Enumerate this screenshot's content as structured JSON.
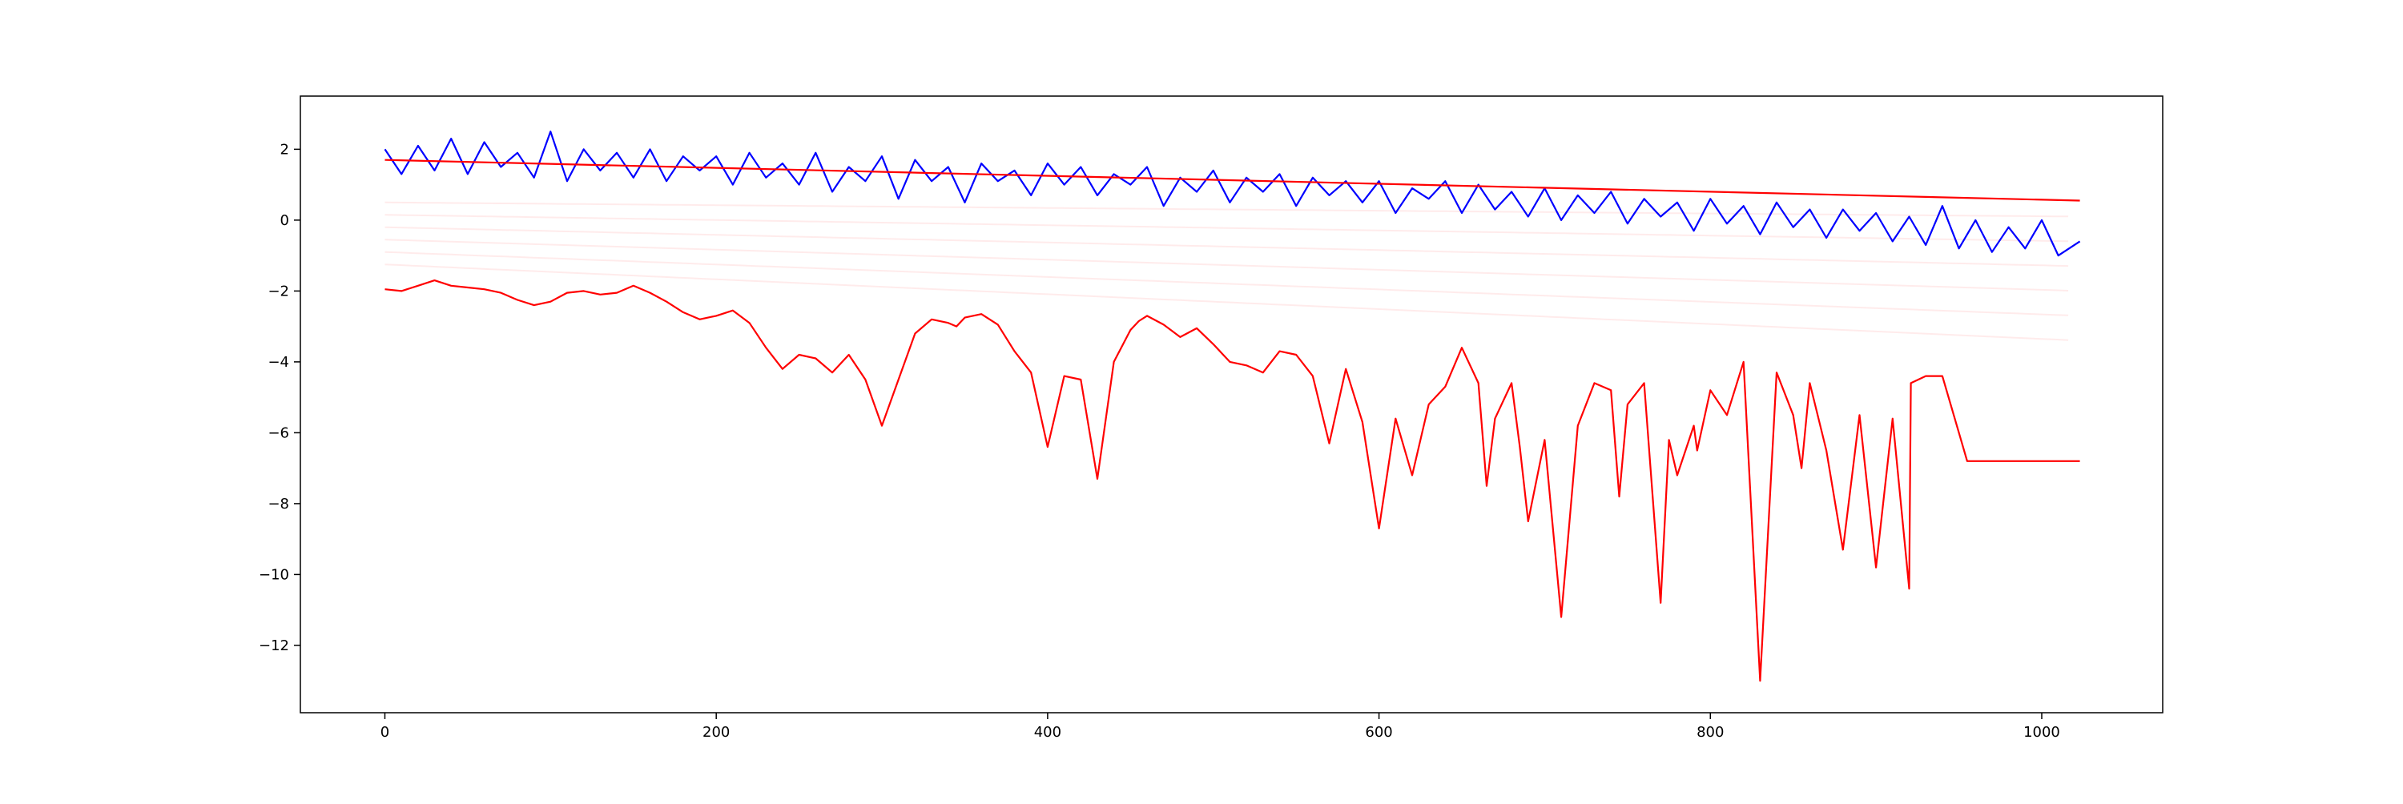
{
  "chart_data": {
    "type": "line",
    "title": "",
    "xlabel": "",
    "ylabel": "",
    "xlim": [
      -51,
      1073
    ],
    "ylim": [
      -13.9,
      3.5
    ],
    "x_ticks": [
      0,
      200,
      400,
      600,
      800,
      1000
    ],
    "x_tick_labels": [
      "0",
      "200",
      "400",
      "600",
      "800",
      "1000"
    ],
    "y_ticks": [
      2,
      0,
      -2,
      -4,
      -6,
      -8,
      -10,
      -12
    ],
    "y_tick_labels": [
      "2",
      "0",
      "−2",
      "−4",
      "−6",
      "−8",
      "−10",
      "−12"
    ],
    "grid": false,
    "legend": null,
    "series": [
      {
        "color": "#0000ff",
        "style": "noisy signal",
        "x": [
          0,
          10,
          20,
          30,
          40,
          50,
          60,
          70,
          80,
          90,
          100,
          110,
          120,
          130,
          140,
          150,
          160,
          170,
          180,
          190,
          200,
          210,
          220,
          230,
          240,
          250,
          260,
          270,
          280,
          290,
          300,
          310,
          320,
          330,
          340,
          350,
          360,
          370,
          380,
          390,
          400,
          410,
          420,
          430,
          440,
          450,
          460,
          470,
          480,
          490,
          500,
          510,
          520,
          530,
          540,
          550,
          560,
          570,
          580,
          590,
          600,
          610,
          620,
          630,
          640,
          650,
          660,
          670,
          680,
          690,
          700,
          710,
          720,
          730,
          740,
          750,
          760,
          770,
          780,
          790,
          800,
          810,
          820,
          830,
          840,
          850,
          860,
          870,
          880,
          890,
          900,
          910,
          920,
          930,
          940,
          950,
          960,
          970,
          980,
          990,
          1000,
          1010,
          1023
        ],
        "y": [
          2.0,
          1.3,
          2.1,
          1.4,
          2.3,
          1.3,
          2.2,
          1.5,
          1.9,
          1.2,
          2.5,
          1.1,
          2.0,
          1.4,
          1.9,
          1.2,
          2.0,
          1.1,
          1.8,
          1.4,
          1.8,
          1.0,
          1.9,
          1.2,
          1.6,
          1.0,
          1.9,
          0.8,
          1.5,
          1.1,
          1.8,
          0.6,
          1.7,
          1.1,
          1.5,
          0.5,
          1.6,
          1.1,
          1.4,
          0.7,
          1.6,
          1.0,
          1.5,
          0.7,
          1.3,
          1.0,
          1.5,
          0.4,
          1.2,
          0.8,
          1.4,
          0.5,
          1.2,
          0.8,
          1.3,
          0.4,
          1.2,
          0.7,
          1.1,
          0.5,
          1.1,
          0.2,
          0.9,
          0.6,
          1.1,
          0.2,
          1.0,
          0.3,
          0.8,
          0.1,
          0.9,
          0.0,
          0.7,
          0.2,
          0.8,
          -0.1,
          0.6,
          0.1,
          0.5,
          -0.3,
          0.6,
          -0.1,
          0.4,
          -0.4,
          0.5,
          -0.2,
          0.3,
          -0.5,
          0.3,
          -0.3,
          0.2,
          -0.6,
          0.1,
          -0.7,
          0.4,
          -0.8,
          0.0,
          -0.9,
          -0.2,
          -0.8,
          0.0,
          -1.0,
          -0.6
        ]
      },
      {
        "color": "#ff0000",
        "style": "straight trend line",
        "x": [
          0,
          1023
        ],
        "y": [
          1.7,
          0.55
        ]
      },
      {
        "color": "#ff0000",
        "style": "log-magnitude curve",
        "x": [
          0,
          10,
          20,
          30,
          40,
          50,
          60,
          70,
          80,
          90,
          100,
          110,
          120,
          130,
          140,
          150,
          160,
          170,
          180,
          190,
          200,
          210,
          220,
          230,
          240,
          250,
          260,
          270,
          280,
          290,
          300,
          310,
          320,
          330,
          340,
          345,
          350,
          360,
          370,
          380,
          390,
          400,
          410,
          420,
          430,
          440,
          450,
          455,
          460,
          470,
          480,
          490,
          500,
          510,
          520,
          530,
          540,
          550,
          560,
          570,
          580,
          590,
          600,
          610,
          620,
          630,
          640,
          650,
          660,
          665,
          670,
          680,
          685,
          690,
          700,
          710,
          720,
          730,
          740,
          745,
          750,
          760,
          770,
          775,
          780,
          790,
          792,
          800,
          810,
          820,
          830,
          840,
          850,
          855,
          860,
          870,
          880,
          890,
          900,
          910,
          920,
          921,
          930,
          940,
          950,
          955,
          960,
          970,
          980,
          985,
          990,
          1000,
          1010,
          1023
        ],
        "y": [
          -1.95,
          -2.0,
          -1.85,
          -1.7,
          -1.85,
          -1.9,
          -1.95,
          -2.05,
          -2.25,
          -2.4,
          -2.3,
          -2.05,
          -2.0,
          -2.1,
          -2.05,
          -1.85,
          -2.05,
          -2.3,
          -2.6,
          -2.8,
          -2.7,
          -2.55,
          -2.9,
          -3.6,
          -4.2,
          -3.8,
          -3.9,
          -4.3,
          -3.8,
          -4.5,
          -5.8,
          -4.5,
          -3.2,
          -2.8,
          -2.9,
          -3.0,
          -2.75,
          -2.65,
          -2.95,
          -3.7,
          -4.3,
          -6.4,
          -4.4,
          -4.5,
          -7.3,
          -4.0,
          -3.1,
          -2.85,
          -2.7,
          -2.95,
          -3.3,
          -3.05,
          -3.5,
          -4.0,
          -4.1,
          -4.3,
          -3.7,
          -3.8,
          -4.4,
          -6.3,
          -4.2,
          -5.7,
          -8.7,
          -5.6,
          -7.2,
          -5.2,
          -4.7,
          -3.6,
          -4.6,
          -7.5,
          -5.6,
          -4.6,
          -6.4,
          -8.5,
          -6.2,
          -11.2,
          -5.8,
          -4.6,
          -4.8,
          -7.8,
          -5.2,
          -4.6,
          -10.8,
          -6.2,
          -7.2,
          -5.8,
          -6.5,
          -4.8,
          -5.5,
          -4.0,
          -13.0,
          -4.3,
          -5.5,
          -7.0,
          -4.6,
          -6.5,
          -9.3,
          -5.5,
          -9.8,
          -5.6,
          -10.4,
          -4.6,
          -4.4,
          -4.4,
          -6.0,
          -6.8,
          -6.8,
          -6.8,
          -6.8,
          -6.8,
          -6.8,
          -6.8,
          -6.8,
          -6.8
        ]
      }
    ],
    "background_traces": {
      "color": "#ff0000",
      "opacity": 0.08,
      "description": "faint pink traces"
    }
  }
}
